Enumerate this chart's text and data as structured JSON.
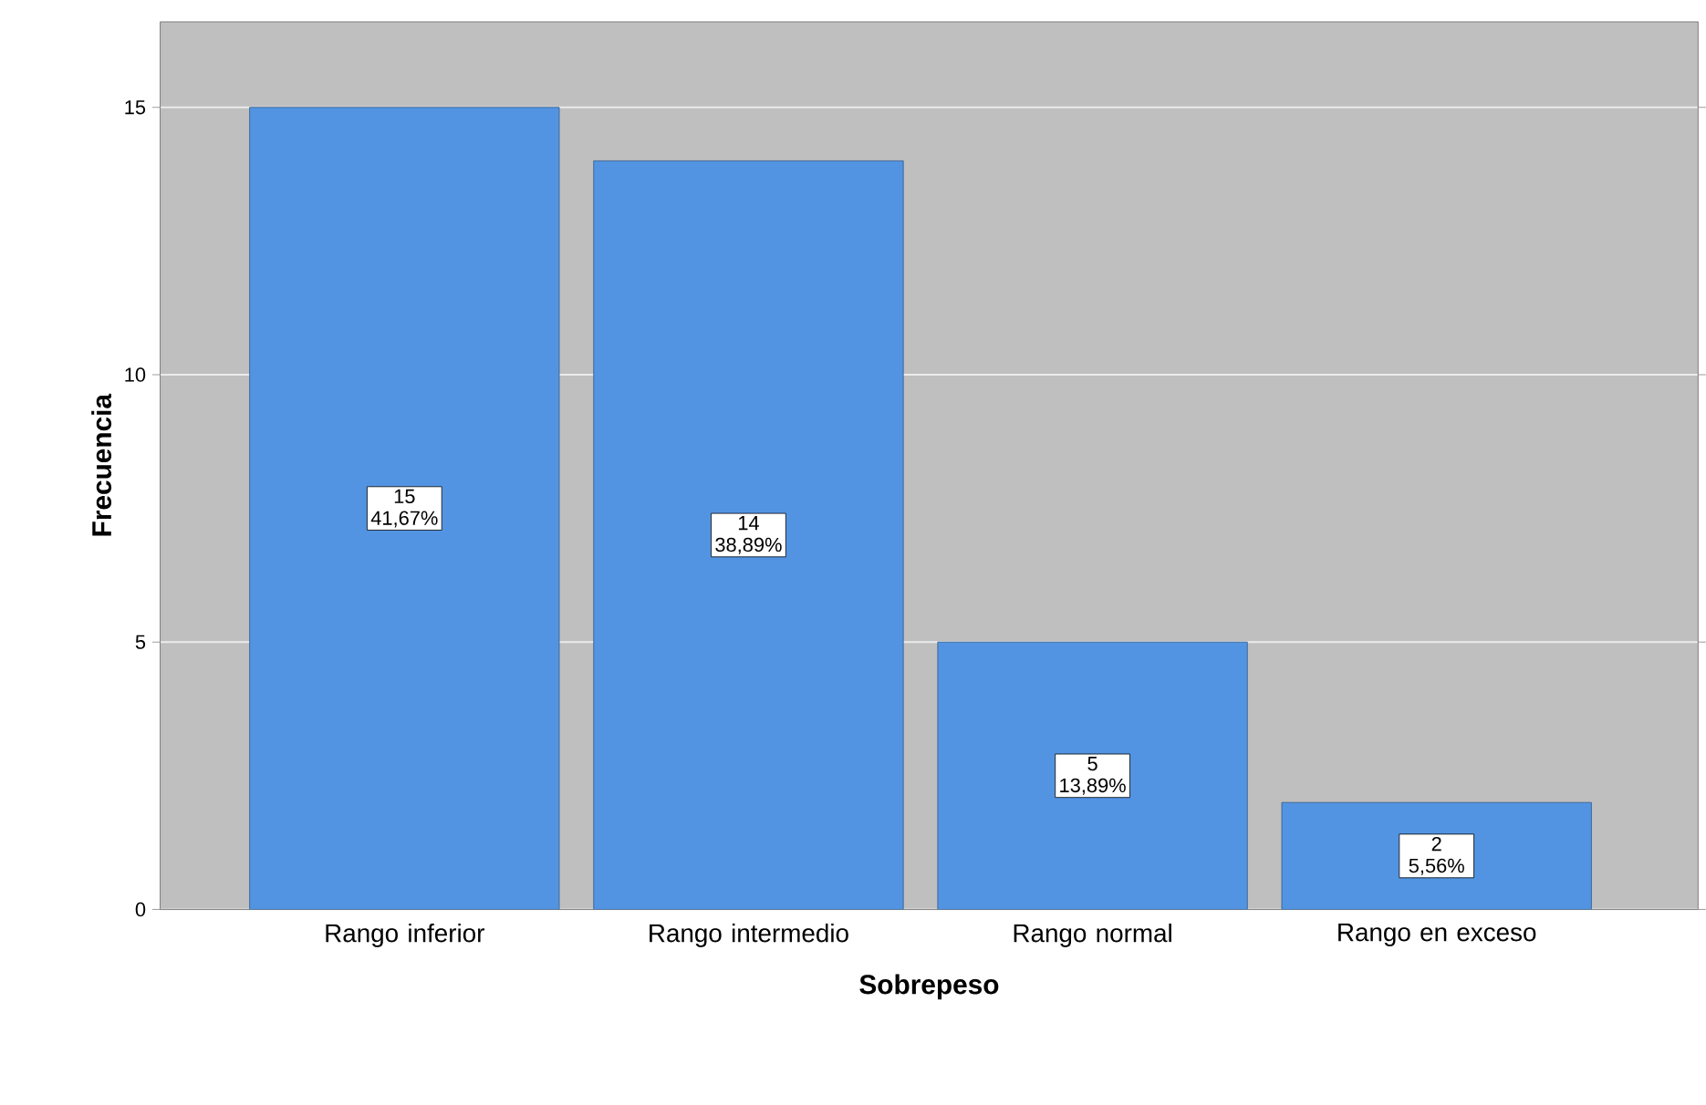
{
  "chart_data": {
    "type": "bar",
    "xlabel": "Sobrepeso",
    "ylabel": "Frecuencia",
    "categories": [
      "Rango inferior",
      "Rango intermedio",
      "Rango normal",
      "Rango en exceso"
    ],
    "values": [
      15,
      14,
      5,
      2
    ],
    "value_labels": [
      "15 41,67%",
      "14 38,89%",
      "5 13,89%",
      "2 5,56%"
    ],
    "color": "#5294e2",
    "ylim": [
      0,
      16.6
    ],
    "yticks": [
      0,
      5,
      10,
      15
    ],
    "grid": "y"
  }
}
